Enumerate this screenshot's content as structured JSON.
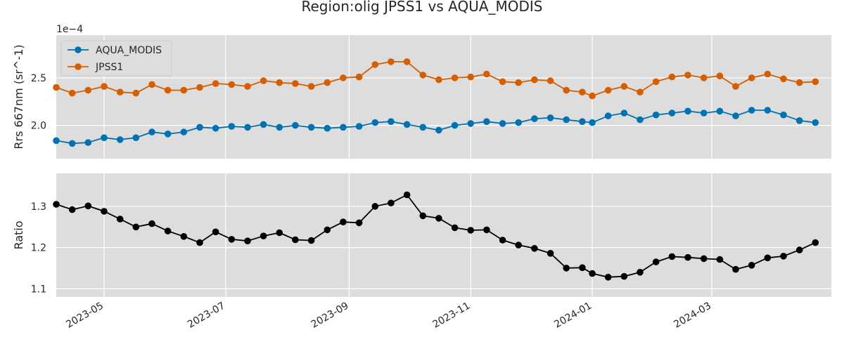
{
  "chart_data": [
    {
      "type": "line",
      "title": "Region:olig JPSS1 vs AQUA_MODIS",
      "ylabel": "Rrs 667nm (sr^-1)",
      "offset_text": "1e−4",
      "ylim": [
        1.65,
        2.95
      ],
      "yticks": [
        2.0,
        2.5
      ],
      "ytick_labels": [
        "2.0",
        "2.5"
      ],
      "grid": true,
      "legend_position": "top-left",
      "x": [
        "2023-04-07",
        "2023-04-15",
        "2023-04-23",
        "2023-05-01",
        "2023-05-09",
        "2023-05-17",
        "2023-05-25",
        "2023-06-02",
        "2023-06-10",
        "2023-06-18",
        "2023-06-26",
        "2023-07-04",
        "2023-07-12",
        "2023-07-20",
        "2023-07-28",
        "2023-08-05",
        "2023-08-13",
        "2023-08-21",
        "2023-08-29",
        "2023-09-06",
        "2023-09-14",
        "2023-09-22",
        "2023-09-30",
        "2023-10-08",
        "2023-10-16",
        "2023-10-24",
        "2023-11-01",
        "2023-11-09",
        "2023-11-17",
        "2023-11-25",
        "2023-12-03",
        "2023-12-11",
        "2023-12-19",
        "2023-12-27",
        "2024-01-01",
        "2024-01-09",
        "2024-01-17",
        "2024-01-25",
        "2024-02-02",
        "2024-02-10",
        "2024-02-18",
        "2024-02-26",
        "2024-03-05",
        "2024-03-13",
        "2024-03-21",
        "2024-03-29",
        "2024-04-06",
        "2024-04-14",
        "2024-04-22"
      ],
      "series": [
        {
          "name": "AQUA_MODIS",
          "color": "#0072b2",
          "values": [
            1.84,
            1.81,
            1.82,
            1.87,
            1.85,
            1.87,
            1.93,
            1.91,
            1.93,
            1.98,
            1.97,
            1.99,
            1.98,
            2.01,
            1.98,
            2.0,
            1.98,
            1.97,
            1.98,
            1.99,
            2.03,
            2.04,
            2.01,
            1.98,
            1.95,
            2.0,
            2.02,
            2.04,
            2.02,
            2.03,
            2.07,
            2.08,
            2.06,
            2.04,
            2.03,
            2.1,
            2.13,
            2.06,
            2.11,
            2.13,
            2.15,
            2.13,
            2.15,
            2.1,
            2.16,
            2.16,
            2.11,
            2.05,
            2.03
          ]
        },
        {
          "name": "JPSS1",
          "color": "#d55e00",
          "values": [
            2.4,
            2.34,
            2.37,
            2.41,
            2.35,
            2.34,
            2.43,
            2.37,
            2.37,
            2.4,
            2.44,
            2.43,
            2.41,
            2.47,
            2.45,
            2.44,
            2.41,
            2.45,
            2.5,
            2.51,
            2.64,
            2.67,
            2.67,
            2.53,
            2.48,
            2.5,
            2.51,
            2.54,
            2.46,
            2.45,
            2.48,
            2.47,
            2.37,
            2.35,
            2.31,
            2.37,
            2.41,
            2.35,
            2.46,
            2.51,
            2.53,
            2.5,
            2.52,
            2.41,
            2.5,
            2.54,
            2.49,
            2.45,
            2.46
          ]
        }
      ]
    },
    {
      "type": "line",
      "ylabel": "Ratio",
      "ylim": [
        1.08,
        1.38
      ],
      "yticks": [
        1.1,
        1.2,
        1.3
      ],
      "ytick_labels": [
        "1.1",
        "1.2",
        "1.3"
      ],
      "grid": true,
      "xlim": [
        "2023-04-07",
        "2024-04-30"
      ],
      "xticks": [
        "2023-05-01",
        "2023-07-01",
        "2023-09-01",
        "2023-11-01",
        "2024-01-01",
        "2024-03-01"
      ],
      "xtick_labels": [
        "2023-05",
        "2023-07",
        "2023-09",
        "2023-11",
        "2024-01",
        "2024-03"
      ],
      "x": [
        "2023-04-07",
        "2023-04-15",
        "2023-04-23",
        "2023-05-01",
        "2023-05-09",
        "2023-05-17",
        "2023-05-25",
        "2023-06-02",
        "2023-06-10",
        "2023-06-18",
        "2023-06-26",
        "2023-07-04",
        "2023-07-12",
        "2023-07-20",
        "2023-07-28",
        "2023-08-05",
        "2023-08-13",
        "2023-08-21",
        "2023-08-29",
        "2023-09-06",
        "2023-09-14",
        "2023-09-22",
        "2023-09-30",
        "2023-10-08",
        "2023-10-16",
        "2023-10-24",
        "2023-11-01",
        "2023-11-09",
        "2023-11-17",
        "2023-11-25",
        "2023-12-03",
        "2023-12-11",
        "2023-12-19",
        "2023-12-27",
        "2024-01-01",
        "2024-01-09",
        "2024-01-17",
        "2024-01-25",
        "2024-02-02",
        "2024-02-10",
        "2024-02-18",
        "2024-02-26",
        "2024-03-05",
        "2024-03-13",
        "2024-03-21",
        "2024-03-29",
        "2024-04-06",
        "2024-04-14",
        "2024-04-22"
      ],
      "series": [
        {
          "color": "#000000",
          "values": [
            1.305,
            1.292,
            1.301,
            1.288,
            1.269,
            1.25,
            1.258,
            1.24,
            1.227,
            1.212,
            1.238,
            1.22,
            1.216,
            1.228,
            1.236,
            1.219,
            1.217,
            1.243,
            1.262,
            1.26,
            1.3,
            1.308,
            1.328,
            1.277,
            1.271,
            1.248,
            1.242,
            1.243,
            1.218,
            1.206,
            1.198,
            1.186,
            1.15,
            1.151,
            1.137,
            1.128,
            1.13,
            1.14,
            1.165,
            1.178,
            1.176,
            1.173,
            1.171,
            1.147,
            1.157,
            1.175,
            1.179,
            1.194,
            1.212
          ]
        }
      ]
    }
  ]
}
